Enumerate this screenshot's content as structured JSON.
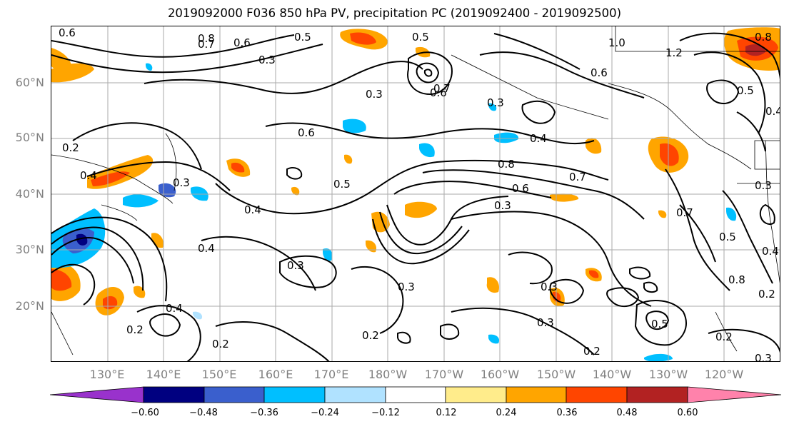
{
  "title": "2019092000 F036 850 hPa PV, precipitation PC (2019092400 - 2019092500)",
  "lat_labels": [
    "60°N",
    "50°N",
    "40°N",
    "30°N",
    "20°N"
  ],
  "lon_labels": [
    "130°E",
    "140°E",
    "150°E",
    "160°E",
    "170°E",
    "180°W",
    "170°W",
    "160°W",
    "150°W",
    "140°W",
    "130°W",
    "120°W"
  ],
  "colorbar": {
    "colors": [
      "#9932cc",
      "#000080",
      "#3a5fcd",
      "#00bfff",
      "#b0e2ff",
      "#ffffff",
      "#ffec8b",
      "#ffa500",
      "#ff4500",
      "#b22222",
      "#ff82ab"
    ],
    "ticks": [
      "−0.60",
      "−0.48",
      "−0.36",
      "−0.24",
      "−0.12",
      "0.12",
      "0.24",
      "0.36",
      "0.48",
      "0.60"
    ]
  },
  "contour_labels": [
    "0.6",
    "0.8",
    "0.7",
    "0.6",
    "0.5",
    "0.5",
    "0.3",
    "0.3",
    "0.7",
    "0.3",
    "0.6",
    "1.0",
    "1.2",
    "0.8",
    "0.6",
    "0.5",
    "0.4",
    "0.2",
    "0.4",
    "0.6",
    "0.4",
    "0.8",
    "0.7",
    "0.6",
    "0.3",
    "0.3",
    "0.4",
    "0.5",
    "0.7",
    "0.5",
    "0.3",
    "0.4",
    "0.3",
    "0.3",
    "0.4",
    "0.5",
    "0.2",
    "0.2",
    "0.2",
    "0.2",
    "0.2",
    "0.8",
    "0.3",
    "0.3",
    "0.4",
    "0.3",
    "0.2"
  ]
}
